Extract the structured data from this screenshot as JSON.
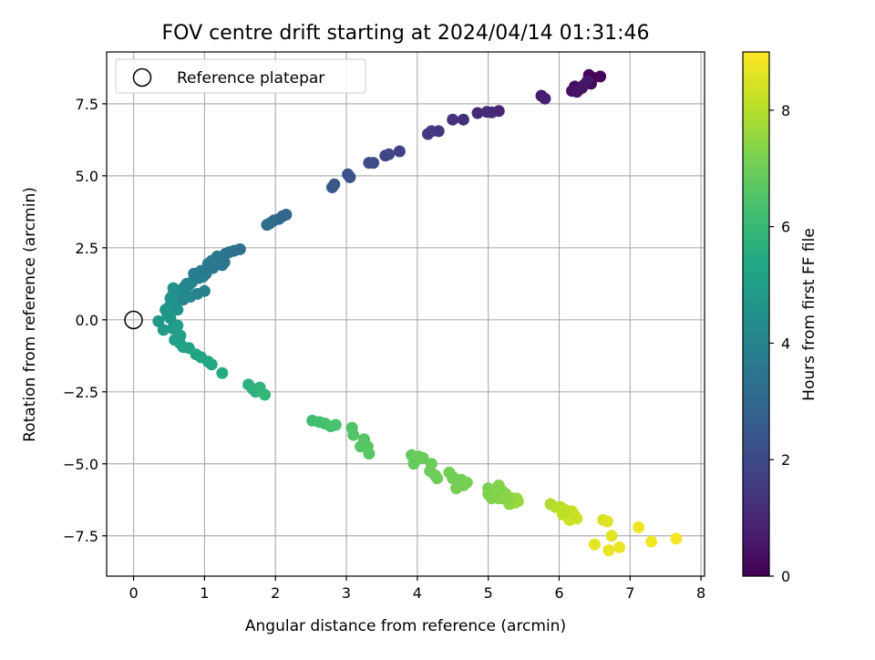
{
  "chart_data": {
    "type": "scatter",
    "title": "FOV centre drift starting at 2024/04/14 01:31:46",
    "xlabel": "Angular distance from reference (arcmin)",
    "ylabel": "Rotation from reference (arcmin)",
    "xlim": [
      -0.38,
      8.05
    ],
    "ylim": [
      -8.9,
      9.3
    ],
    "xticks": [
      0,
      1,
      2,
      3,
      4,
      5,
      6,
      7,
      8
    ],
    "xtick_labels": [
      "0",
      "1",
      "2",
      "3",
      "4",
      "5",
      "6",
      "7",
      "8"
    ],
    "yticks": [
      -7.5,
      -5.0,
      -2.5,
      0.0,
      2.5,
      5.0,
      7.5
    ],
    "ytick_labels": [
      "−7.5",
      "−5.0",
      "−2.5",
      "0.0",
      "2.5",
      "5.0",
      "7.5"
    ],
    "grid": true,
    "legend": {
      "placement": "upper-left",
      "entries": [
        "Reference platepar"
      ]
    },
    "reference_point": {
      "x": 0,
      "y": 0
    },
    "colorbar": {
      "label": "Hours from first FF file",
      "range": [
        0,
        9
      ],
      "ticks": [
        0,
        2,
        4,
        6,
        8
      ],
      "tick_labels": [
        "0",
        "2",
        "4",
        "6",
        "8"
      ],
      "colormap": "viridis"
    },
    "series": [
      {
        "x": [
          6.42,
          6.48,
          6.58,
          6.45,
          6.35,
          6.22,
          6.18,
          6.28,
          6.25,
          6.32,
          6.4
        ],
        "y": [
          8.5,
          8.4,
          8.45,
          8.2,
          8.15,
          8.1,
          7.95,
          8.0,
          7.92,
          8.05,
          8.3
        ],
        "c": [
          0.05,
          0.1,
          0.15,
          0.2,
          0.25,
          0.3,
          0.35,
          0.4,
          0.45,
          0.5,
          0.55
        ]
      },
      {
        "x": [
          5.75,
          5.8,
          5.15,
          5.05,
          4.98,
          4.85,
          4.65,
          4.5
        ],
        "y": [
          7.78,
          7.68,
          7.25,
          7.2,
          7.22,
          7.18,
          6.95,
          6.95
        ],
        "c": [
          0.7,
          0.8,
          0.95,
          1.0,
          1.05,
          1.1,
          1.2,
          1.3
        ]
      },
      {
        "x": [
          4.3,
          4.2,
          4.15,
          3.75,
          3.6,
          3.55,
          3.38,
          3.32
        ],
        "y": [
          6.55,
          6.55,
          6.45,
          5.85,
          5.75,
          5.7,
          5.45,
          5.45
        ],
        "c": [
          1.4,
          1.5,
          1.55,
          1.75,
          1.85,
          1.9,
          2.0,
          2.05
        ]
      },
      {
        "x": [
          3.05,
          3.02,
          2.83,
          2.8,
          2.15,
          2.1,
          2.05,
          1.98,
          1.92,
          1.88
        ],
        "y": [
          4.95,
          5.05,
          4.7,
          4.6,
          3.65,
          3.6,
          3.5,
          3.45,
          3.35,
          3.3
        ],
        "c": [
          2.2,
          2.25,
          2.4,
          2.45,
          2.9,
          2.95,
          3.0,
          3.05,
          3.1,
          3.15
        ]
      },
      {
        "x": [
          1.5,
          1.42,
          1.35,
          1.3,
          1.28,
          1.22,
          1.18,
          1.1,
          1.05,
          1.02,
          0.98,
          0.92,
          0.88,
          0.85,
          0.82,
          0.78,
          0.75,
          0.72,
          0.68,
          0.65,
          0.62,
          0.6,
          0.58,
          0.56,
          0.55,
          0.52,
          0.6,
          0.7,
          0.8,
          0.9,
          1.0,
          1.12,
          1.25,
          0.95,
          0.85,
          0.75,
          0.62
        ],
        "y": [
          2.45,
          2.4,
          2.35,
          2.3,
          2.0,
          2.1,
          2.2,
          2.05,
          1.95,
          1.6,
          1.5,
          1.45,
          1.55,
          1.4,
          1.3,
          1.2,
          1.25,
          1.15,
          1.05,
          1.0,
          0.95,
          0.9,
          1.05,
          1.1,
          0.85,
          0.75,
          0.6,
          0.7,
          0.8,
          0.9,
          1.0,
          1.8,
          1.9,
          1.7,
          1.6,
          0.8,
          0.35
        ],
        "c": [
          3.3,
          3.35,
          3.4,
          3.45,
          3.5,
          3.55,
          3.6,
          3.65,
          3.7,
          3.75,
          3.8,
          3.85,
          3.9,
          3.95,
          4.0,
          4.05,
          4.1,
          4.15,
          4.2,
          4.25,
          4.3,
          4.35,
          4.4,
          4.45,
          4.5,
          4.55,
          4.6,
          4.05,
          4.1,
          4.0,
          3.9,
          3.6,
          3.5,
          3.7,
          3.75,
          4.2,
          4.55
        ]
      },
      {
        "x": [
          0.5,
          0.45,
          0.48,
          0.52,
          0.35,
          0.42,
          0.55,
          0.62,
          0.66,
          0.58,
          0.65,
          0.7,
          0.78,
          0.88,
          0.95,
          1.05,
          1.1,
          1.25,
          1.62,
          1.68,
          1.72,
          1.78,
          1.85
        ],
        "y": [
          0.45,
          0.35,
          0.15,
          0.05,
          -0.05,
          -0.35,
          -0.3,
          -0.2,
          -0.55,
          -0.7,
          -0.8,
          -0.95,
          -0.98,
          -1.2,
          -1.3,
          -1.45,
          -1.55,
          -1.85,
          -2.25,
          -2.4,
          -2.5,
          -2.35,
          -2.6
        ],
        "c": [
          4.6,
          4.65,
          4.7,
          4.75,
          4.8,
          4.85,
          4.9,
          4.95,
          5.0,
          5.05,
          5.1,
          5.15,
          5.2,
          5.25,
          5.3,
          5.35,
          5.4,
          5.5,
          5.7,
          5.75,
          5.8,
          5.85,
          5.9
        ]
      },
      {
        "x": [
          2.52,
          2.62,
          2.7,
          2.78,
          2.85,
          3.08,
          3.1,
          3.2,
          3.25,
          3.3,
          3.32,
          3.92,
          3.96,
          4.02,
          3.95,
          4.08,
          4.2,
          4.18,
          4.25,
          4.28,
          4.45,
          4.5,
          4.58,
          4.62,
          4.65,
          4.7,
          4.55,
          4.5
        ],
        "y": [
          -3.5,
          -3.55,
          -3.6,
          -3.7,
          -3.65,
          -3.75,
          -4.0,
          -4.4,
          -4.15,
          -4.4,
          -4.65,
          -4.7,
          -4.85,
          -4.75,
          -5.0,
          -4.8,
          -5.0,
          -5.25,
          -5.4,
          -5.5,
          -5.3,
          -5.45,
          -5.6,
          -5.55,
          -5.75,
          -5.65,
          -5.85,
          -5.5
        ],
        "c": [
          6.2,
          6.25,
          6.3,
          6.35,
          6.4,
          6.5,
          6.55,
          6.6,
          6.6,
          6.65,
          6.65,
          6.8,
          6.85,
          6.9,
          6.85,
          6.9,
          6.95,
          6.95,
          7.0,
          7.0,
          7.05,
          7.05,
          7.1,
          7.1,
          7.15,
          7.15,
          7.1,
          7.05
        ]
      },
      {
        "x": [
          5.0,
          5.05,
          5.1,
          5.15,
          5.18,
          5.2,
          5.25,
          5.28,
          5.3,
          5.32,
          5.35,
          5.38,
          5.4,
          5.42,
          5.1,
          5.15,
          5.2,
          5.3,
          5.25,
          5.0,
          5.05
        ],
        "y": [
          -5.85,
          -5.9,
          -6.0,
          -5.75,
          -6.1,
          -6.2,
          -6.05,
          -6.3,
          -6.4,
          -6.25,
          -6.2,
          -6.35,
          -6.2,
          -6.3,
          -6.15,
          -6.2,
          -5.95,
          -6.3,
          -6.15,
          -6.05,
          -6.2
        ],
        "c": [
          7.2,
          7.25,
          7.3,
          7.35,
          7.35,
          7.4,
          7.4,
          7.45,
          7.45,
          7.5,
          7.5,
          7.55,
          7.55,
          7.6,
          7.3,
          7.35,
          7.3,
          7.45,
          7.4,
          7.25,
          7.3
        ]
      },
      {
        "x": [
          5.88,
          5.95,
          6.02,
          6.08,
          6.12,
          6.18,
          6.22,
          6.15,
          6.05,
          6.25
        ],
        "y": [
          -6.4,
          -6.5,
          -6.5,
          -6.6,
          -6.85,
          -6.65,
          -6.8,
          -6.95,
          -6.75,
          -6.9
        ],
        "c": [
          7.9,
          8.0,
          8.05,
          8.1,
          8.2,
          8.15,
          8.25,
          8.3,
          8.1,
          8.3
        ]
      },
      {
        "x": [
          6.62,
          6.68,
          6.74,
          6.5,
          6.7,
          6.85,
          7.12,
          7.3,
          7.65
        ],
        "y": [
          -6.95,
          -7.0,
          -7.5,
          -7.8,
          -8.0,
          -7.9,
          -7.2,
          -7.7,
          -7.6
        ],
        "c": [
          8.5,
          8.55,
          8.6,
          8.65,
          8.7,
          8.75,
          8.8,
          8.85,
          8.9
        ]
      }
    ]
  }
}
